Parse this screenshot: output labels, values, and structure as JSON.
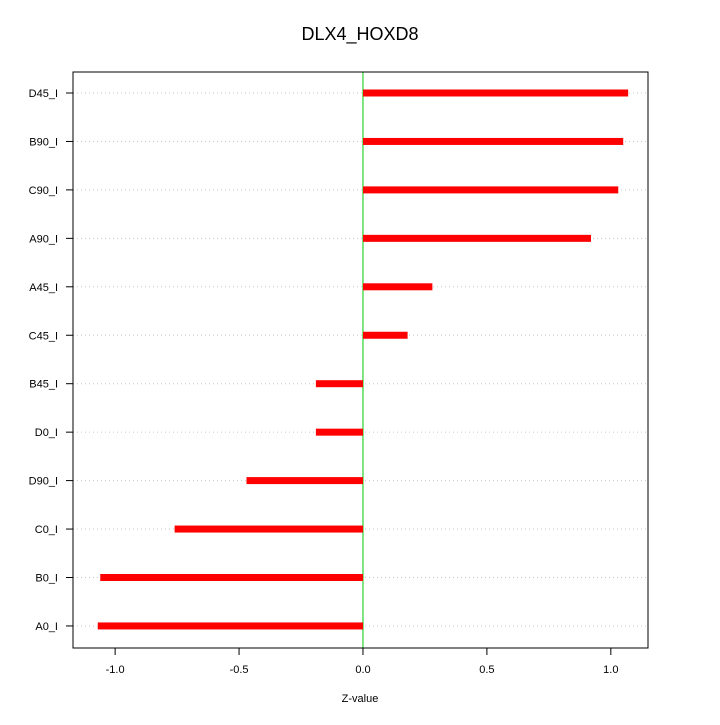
{
  "chart_data": {
    "type": "bar",
    "orientation": "horizontal",
    "title": "DLX4_HOXD8",
    "xlabel": "Z-value",
    "ylabel": "",
    "xlim": [
      -1.17,
      1.15
    ],
    "xticks": [
      -1.0,
      -0.5,
      0.0,
      0.5,
      1.0
    ],
    "xtick_labels": [
      "-1.0",
      "-0.5",
      "0.0",
      "0.5",
      "1.0"
    ],
    "categories": [
      "D45_I",
      "B90_I",
      "C90_I",
      "A90_I",
      "A45_I",
      "C45_I",
      "B45_I",
      "D0_I",
      "D90_I",
      "C0_I",
      "B0_I",
      "A0_I"
    ],
    "values": [
      1.07,
      1.05,
      1.03,
      0.92,
      0.28,
      0.18,
      -0.19,
      -0.19,
      -0.47,
      -0.76,
      -1.06,
      -1.07
    ],
    "bar_color": "#ff0000",
    "zero_line_color": "#00cc00",
    "grid": "horizontal dotted"
  }
}
